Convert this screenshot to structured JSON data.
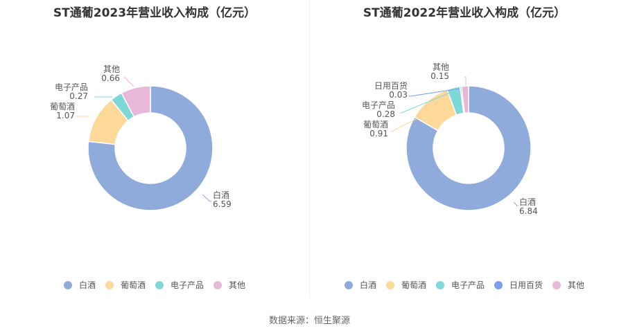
{
  "footer": {
    "source": "数据来源：恒生聚源"
  },
  "chart_data": [
    {
      "type": "pie",
      "title": "ST通葡2023年营业收入构成（亿元）",
      "slices": [
        {
          "label": "白酒",
          "value": 6.59,
          "value_label": "6.59",
          "color": "#8fabdb"
        },
        {
          "label": "葡萄酒",
          "value": 1.07,
          "value_label": "1.07",
          "color": "#fcd899"
        },
        {
          "label": "电子产品",
          "value": 0.27,
          "value_label": "0.27",
          "color": "#7fd8d8"
        },
        {
          "label": "其他",
          "value": 0.66,
          "value_label": "0.66",
          "color": "#e8b8db"
        }
      ],
      "legend": [
        {
          "label": "白酒",
          "color": "#8fabdb"
        },
        {
          "label": "葡萄酒",
          "color": "#fcd899"
        },
        {
          "label": "电子产品",
          "color": "#7fd8d8"
        },
        {
          "label": "其他",
          "color": "#e8b8db"
        }
      ]
    },
    {
      "type": "pie",
      "title": "ST通葡2022年营业收入构成（亿元）",
      "slices": [
        {
          "label": "白酒",
          "value": 6.84,
          "value_label": "6.84",
          "color": "#8fabdb"
        },
        {
          "label": "葡萄酒",
          "value": 0.91,
          "value_label": "0.91",
          "color": "#fcd899"
        },
        {
          "label": "电子产品",
          "value": 0.28,
          "value_label": "0.28",
          "color": "#7fd8d8"
        },
        {
          "label": "日用百货",
          "value": 0.03,
          "value_label": "0.03",
          "color": "#7b9eed"
        },
        {
          "label": "其他",
          "value": 0.15,
          "value_label": "0.15",
          "color": "#e8b8db"
        }
      ],
      "legend": [
        {
          "label": "白酒",
          "color": "#8fabdb"
        },
        {
          "label": "葡萄酒",
          "color": "#fcd899"
        },
        {
          "label": "电子产品",
          "color": "#7fd8d8"
        },
        {
          "label": "日用百货",
          "color": "#7b9eed"
        },
        {
          "label": "其他",
          "color": "#e8b8db"
        }
      ]
    }
  ]
}
